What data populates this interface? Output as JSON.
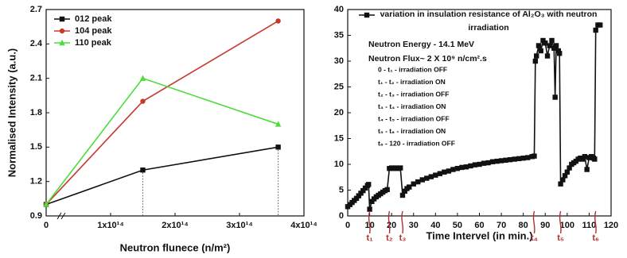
{
  "chart_data": [
    {
      "type": "line",
      "x_label": "Neutron flunece (n/m²)",
      "y_label": "Normalised Intensity (a.u.)",
      "x": [
        0,
        150000000000000,
        360000000000000
      ],
      "series": [
        {
          "name": "012 peak",
          "color": "#111111",
          "marker": "square",
          "values": [
            1.0,
            1.3,
            1.5
          ]
        },
        {
          "name": "104 peak",
          "color": "#c8382c",
          "marker": "circle",
          "values": [
            1.0,
            1.9,
            2.6
          ]
        },
        {
          "name": "110 peak",
          "color": "#4cdc3c",
          "marker": "triangle",
          "values": [
            1.0,
            2.1,
            1.7
          ]
        }
      ],
      "xlim": [
        0,
        400000000000000
      ],
      "xticks": [
        0,
        {
          "value": 100000000000000,
          "label": "1x10¹⁴"
        },
        {
          "value": 200000000000000,
          "label": "2x10¹⁴"
        },
        {
          "value": 300000000000000,
          "label": "3x10¹⁴"
        },
        {
          "value": 400000000000000,
          "label": "4x10¹⁴"
        }
      ],
      "ylim": [
        0.9,
        2.7
      ],
      "yticks": [
        0.9,
        1.2,
        1.5,
        1.8,
        2.1,
        2.4,
        2.7
      ],
      "drop_lines": true,
      "legend": "top-left"
    },
    {
      "type": "line",
      "x_label": "Time Intervel (in min.)",
      "x": [
        0,
        1,
        2,
        3,
        4,
        5,
        6,
        7,
        8,
        9,
        9.5,
        10,
        11,
        12,
        13,
        14,
        15,
        16,
        17,
        18,
        19,
        20,
        21,
        22,
        23,
        24,
        25,
        26,
        27,
        28,
        30,
        32,
        34,
        36,
        38,
        40,
        42,
        44,
        46,
        48,
        50,
        52,
        54,
        56,
        58,
        60,
        62,
        64,
        66,
        68,
        70,
        72,
        74,
        76,
        78,
        80,
        82,
        84,
        85,
        85.5,
        86,
        87,
        88,
        89,
        90,
        91,
        92,
        93,
        94,
        94.5,
        95,
        96,
        96.5,
        97,
        98,
        99,
        100,
        101,
        102,
        103,
        104,
        105,
        106,
        107,
        108,
        109,
        110,
        111,
        112,
        112.5,
        113,
        114,
        115
      ],
      "series": [
        {
          "name": "variation in insulation resistance of Al₂O₃ with neutron irradiation",
          "color": "#111111",
          "marker": "square",
          "values": [
            1.8,
            2.2,
            2.6,
            3.0,
            3.4,
            3.9,
            4.4,
            4.9,
            5.4,
            5.9,
            6.1,
            1.3,
            2.8,
            3.3,
            3.7,
            4.0,
            4.3,
            4.6,
            4.9,
            5.1,
            9.2,
            9.3,
            9.2,
            9.3,
            9.2,
            9.3,
            4.0,
            4.8,
            5.3,
            5.6,
            6.2,
            6.6,
            7.0,
            7.3,
            7.6,
            7.9,
            8.2,
            8.5,
            8.7,
            9.0,
            9.2,
            9.4,
            9.5,
            9.7,
            9.9,
            10.0,
            10.2,
            10.3,
            10.5,
            10.6,
            10.7,
            10.8,
            10.9,
            11.0,
            11.1,
            11.2,
            11.3,
            11.5,
            11.6,
            30.0,
            31.0,
            33.0,
            32.0,
            34.0,
            33.5,
            31.0,
            33.0,
            34.0,
            32.5,
            23.0,
            33.0,
            32.0,
            31.5,
            6.2,
            7.0,
            7.8,
            8.5,
            9.3,
            10.0,
            10.3,
            10.6,
            11.0,
            11.2,
            11.0,
            11.5,
            9.0,
            11.3,
            11.5,
            11.2,
            11.0,
            36.0,
            37.0,
            37.0
          ]
        }
      ],
      "xlim": [
        0,
        120
      ],
      "xticks": [
        0,
        10,
        20,
        30,
        40,
        50,
        60,
        70,
        80,
        90,
        100,
        110,
        120
      ],
      "ylim": [
        0,
        40
      ],
      "yticks": [
        0,
        5,
        10,
        15,
        20,
        25,
        30,
        35,
        40
      ],
      "legend": "top-left",
      "annotations": [
        "Neutron Energy - 14.1 MeV",
        "Neutron Flux~ 2 X 10⁹ n/cm².s",
        "0 - t₁ - irradiation OFF",
        "t₁ - t₂ - irradiation ON",
        "t₂ - t₃ - irradiation  OFF",
        "t₃ - t₄ - irradiation ON",
        "t₄ - t₅ - irradiation OFF",
        "t₅ - t₆ - irradiation  ON",
        "t₆ - 120 - irradiation OFF"
      ],
      "marker_color": "#b03030",
      "markers": [
        {
          "x": 10,
          "label": "t₁"
        },
        {
          "x": 19,
          "label": "t₂"
        },
        {
          "x": 25,
          "label": "t₃"
        },
        {
          "x": 85,
          "label": "t₄"
        },
        {
          "x": 97,
          "label": "t₅"
        },
        {
          "x": 113,
          "label": "t₆"
        }
      ]
    }
  ]
}
